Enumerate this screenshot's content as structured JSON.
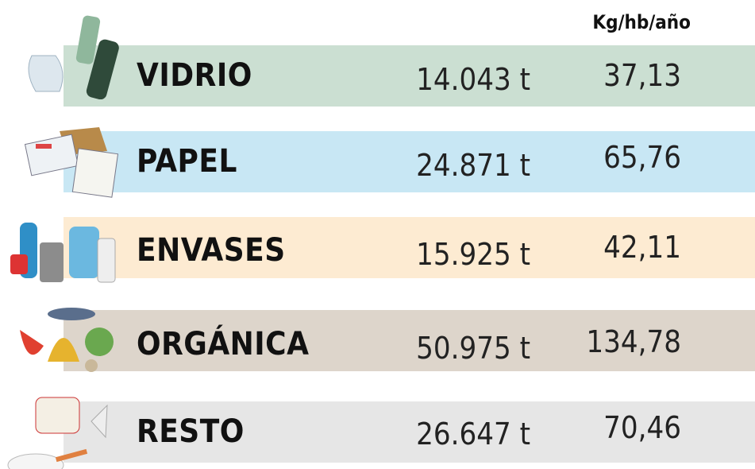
{
  "header": {
    "unit": "Kg/hb/año"
  },
  "rows": [
    {
      "label": "VIDRIO",
      "tonnes": "14.043 t",
      "per_capita": "37,13"
    },
    {
      "label": "PAPEL",
      "tonnes": "24.871 t",
      "per_capita": "65,76"
    },
    {
      "label": "ENVASES",
      "tonnes": "15.925 t",
      "per_capita": "42,11"
    },
    {
      "label": "ORGÁNICA",
      "tonnes": "50.975 t",
      "per_capita": "134,78"
    },
    {
      "label": "RESTO",
      "tonnes": "26.647 t",
      "per_capita": "70,46"
    }
  ]
}
